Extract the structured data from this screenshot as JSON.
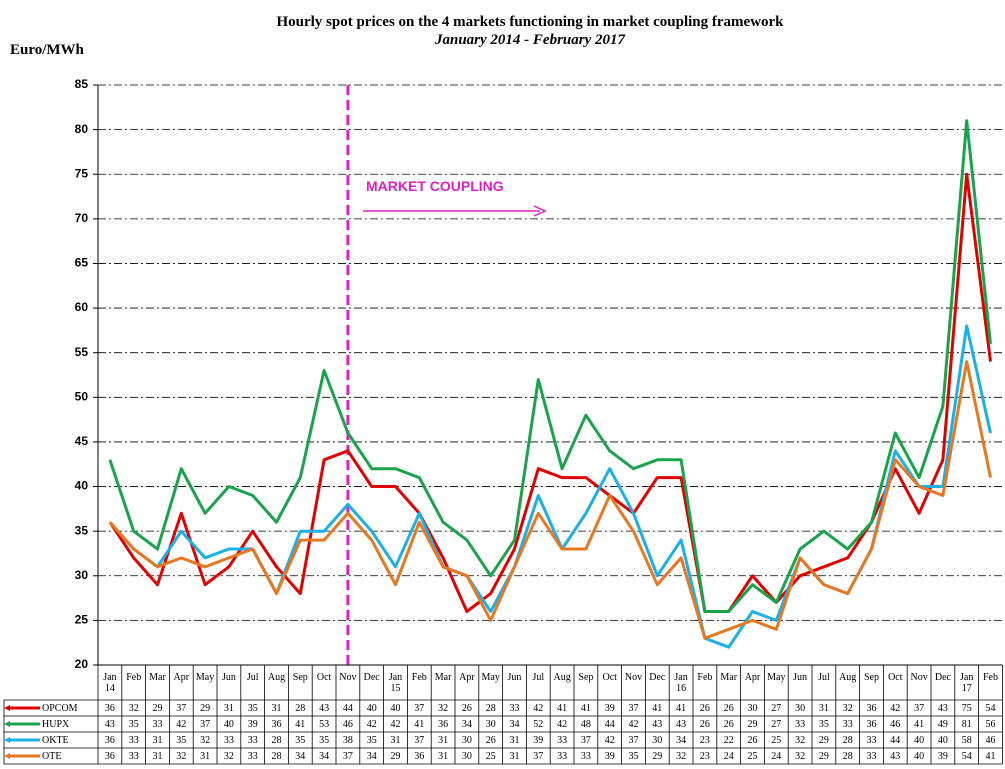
{
  "chart_data": {
    "type": "line",
    "title": "Hourly  spot prices on the 4 markets functioning  in market coupling framework",
    "subtitle": "January 2014 - February 2017",
    "y_label": "Euro/MWh",
    "annotation": "MARKET COUPLING",
    "categories": [
      "Jan 14",
      "Feb",
      "Mar",
      "Apr",
      "May",
      "Jun",
      "Jul",
      "Aug",
      "Sep",
      "Oct",
      "Nov",
      "Dec",
      "Jan 15",
      "Feb",
      "Mar",
      "Apr",
      "May",
      "Jun",
      "Jul",
      "Aug",
      "Sep",
      "Oct",
      "Nov",
      "Dec",
      "Jan 16",
      "Feb",
      "Mar",
      "Apr",
      "May",
      "Jun",
      "Jul",
      "Aug",
      "Sep",
      "Oct",
      "Nov",
      "Dec",
      "Jan 17",
      "Feb"
    ],
    "series": [
      {
        "name": "OPCOM",
        "color": "#e00000",
        "values": [
          36,
          32,
          29,
          37,
          29,
          31,
          35,
          31,
          28,
          43,
          44,
          40,
          40,
          37,
          32,
          26,
          28,
          33,
          42,
          41,
          41,
          39,
          37,
          41,
          41,
          26,
          26,
          30,
          27,
          30,
          31,
          32,
          36,
          42,
          37,
          43,
          75,
          54
        ]
      },
      {
        "name": "HUPX",
        "color": "#1aa34a",
        "values": [
          43,
          35,
          33,
          42,
          37,
          40,
          39,
          36,
          41,
          53,
          46,
          42,
          42,
          41,
          36,
          34,
          30,
          34,
          52,
          42,
          48,
          44,
          42,
          43,
          43,
          26,
          26,
          29,
          27,
          33,
          35,
          33,
          36,
          46,
          41,
          49,
          81,
          56
        ]
      },
      {
        "name": "OKTE",
        "color": "#1ab0e8",
        "values": [
          36,
          33,
          31,
          35,
          32,
          33,
          33,
          28,
          35,
          35,
          38,
          35,
          31,
          37,
          31,
          30,
          26,
          31,
          39,
          33,
          37,
          42,
          37,
          30,
          34,
          23,
          22,
          26,
          25,
          32,
          29,
          28,
          33,
          44,
          40,
          40,
          58,
          46
        ]
      },
      {
        "name": "OTE",
        "color": "#e87722",
        "values": [
          36,
          33,
          31,
          32,
          31,
          32,
          33,
          28,
          34,
          34,
          37,
          34,
          29,
          36,
          31,
          30,
          25,
          31,
          37,
          33,
          33,
          39,
          35,
          29,
          32,
          23,
          24,
          25,
          24,
          32,
          29,
          28,
          33,
          43,
          40,
          39,
          54,
          41
        ]
      }
    ],
    "ylim": [
      20,
      85
    ],
    "yticks": [
      20,
      25,
      30,
      35,
      40,
      45,
      50,
      55,
      60,
      65,
      70,
      75,
      80,
      85
    ],
    "grid": true
  }
}
